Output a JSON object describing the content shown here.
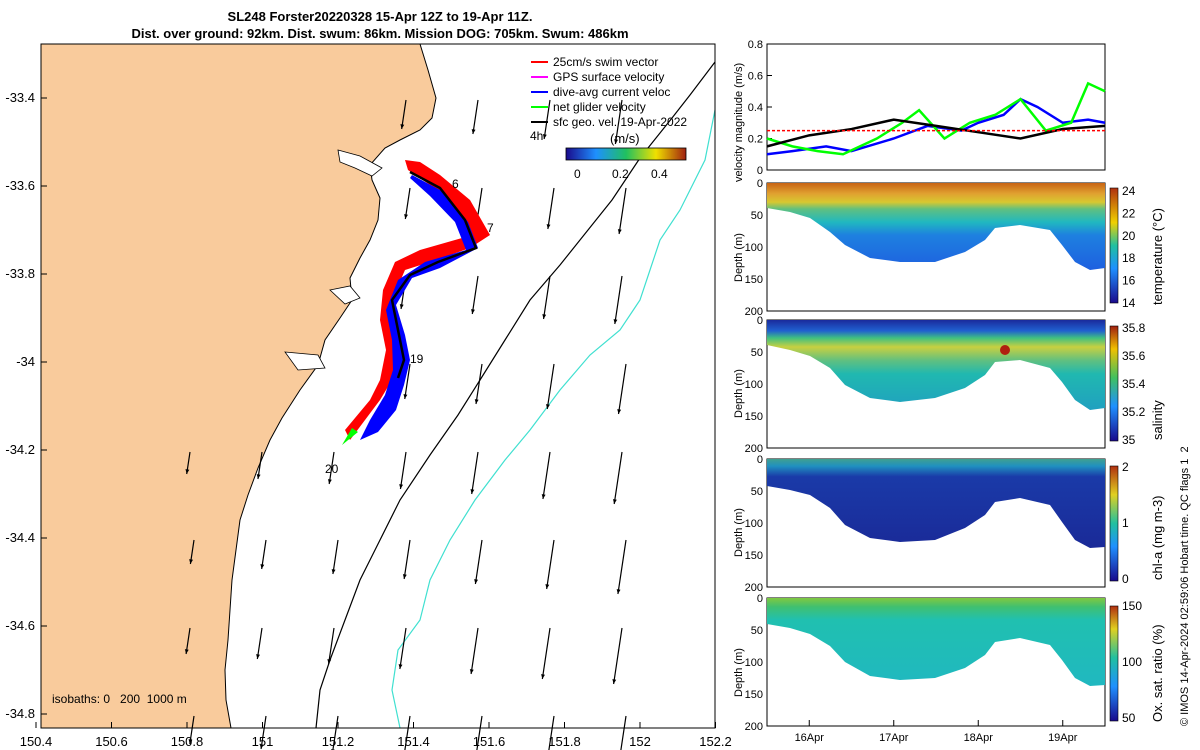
{
  "header": {
    "title_line1": "SL248 Forster20220328 15-Apr 12Z to 19-Apr 11Z.",
    "title_line2": "Dist. over ground: 92km. Dist. swum: 86km. Mission DOG: 705km. Swum: 486km"
  },
  "map": {
    "x_ticks": [
      "150.4",
      "150.6",
      "150.8",
      "151",
      "151.2",
      "151.4",
      "151.6",
      "151.8",
      "152",
      "152.2"
    ],
    "y_ticks": [
      "-33.4",
      "-33.6",
      "-33.8",
      "-34",
      "-34.2",
      "-34.4",
      "-34.6",
      "-34.8"
    ],
    "legend": [
      {
        "label": "25cm/s swim vector",
        "color": "#ff0000"
      },
      {
        "label": "GPS surface velocity",
        "color": "#ff00ff"
      },
      {
        "label": "dive-avg current veloc",
        "color": "#0000ff"
      },
      {
        "label": "net glider velocity",
        "color": "#00ff00"
      },
      {
        "label": "sfc geo. vel. 19-Apr-2022",
        "color": "#000000"
      }
    ],
    "legend_extra": "4h",
    "colorbar_label": "(m/s)",
    "colorbar_ticks": [
      "0",
      "0.2",
      "0.4"
    ],
    "day_labels": [
      "6",
      "7",
      "19",
      "20"
    ],
    "isobath_text": "isobaths: 0   200  1000 m",
    "colors": {
      "land": "#f9cb9c",
      "track_red": "#ff0000",
      "track_blue": "#0000ff",
      "isobath_200": "#000000",
      "isobath_1000": "#40e0d0"
    }
  },
  "chart_data": [
    {
      "type": "line",
      "ylabel": "velocity magnitude (m/s)",
      "ylim": [
        0,
        0.8
      ],
      "yticks": [
        "0",
        "0.2",
        "0.4",
        "0.6",
        "0.8"
      ],
      "series": [
        {
          "color": "#0000ff",
          "x": [
            15.5,
            15.8,
            16.2,
            16.5,
            17.0,
            17.4,
            17.8,
            18.0,
            18.3,
            18.5,
            18.7,
            19.0,
            19.3,
            19.5
          ],
          "y": [
            0.1,
            0.12,
            0.15,
            0.12,
            0.2,
            0.28,
            0.25,
            0.3,
            0.35,
            0.45,
            0.4,
            0.3,
            0.32,
            0.3
          ]
        },
        {
          "color": "#00ff00",
          "x": [
            15.5,
            15.8,
            16.1,
            16.4,
            16.8,
            17.1,
            17.3,
            17.6,
            17.9,
            18.2,
            18.5,
            18.8,
            19.1,
            19.3,
            19.5
          ],
          "y": [
            0.2,
            0.15,
            0.12,
            0.1,
            0.2,
            0.3,
            0.38,
            0.2,
            0.3,
            0.35,
            0.45,
            0.25,
            0.3,
            0.55,
            0.5
          ]
        },
        {
          "color": "#000000",
          "x": [
            15.5,
            16.0,
            16.5,
            17.0,
            17.5,
            18.0,
            18.5,
            19.0,
            19.5
          ],
          "y": [
            0.15,
            0.22,
            0.26,
            0.32,
            0.28,
            0.24,
            0.2,
            0.26,
            0.28
          ]
        },
        {
          "color": "#ff0000",
          "x": [
            15.5,
            19.5
          ],
          "y": [
            0.25,
            0.25
          ]
        }
      ]
    },
    {
      "type": "heatmap",
      "ylabel": "Depth (m)",
      "cbar_label": "temperature (°C)",
      "cbar_ticks": [
        "24",
        "22",
        "20",
        "18",
        "16",
        "14"
      ],
      "ylim": [
        200,
        0
      ]
    },
    {
      "type": "heatmap",
      "ylabel": "Depth (m)",
      "cbar_label": "salinity",
      "cbar_ticks": [
        "35.8",
        "35.6",
        "35.4",
        "35.2",
        "35"
      ],
      "ylim": [
        200,
        0
      ]
    },
    {
      "type": "heatmap",
      "ylabel": "Depth (m)",
      "cbar_label": "chl-a (mg m-3)",
      "cbar_ticks": [
        "2",
        "1",
        "0"
      ],
      "ylim": [
        200,
        0
      ]
    },
    {
      "type": "heatmap",
      "ylabel": "Depth (m)",
      "cbar_label": "Ox. sat. ratio (%)",
      "cbar_ticks": [
        "150",
        "100",
        "50"
      ],
      "ylim": [
        200,
        0
      ]
    }
  ],
  "time_axis": [
    "16Apr",
    "17Apr",
    "18Apr",
    "19Apr"
  ],
  "depth_ticks": [
    "0",
    "50",
    "100",
    "150",
    "200"
  ],
  "side_note": "© IMOS 14-Apr-2024 02:59:06 Hobart time. QC flags 1  2"
}
